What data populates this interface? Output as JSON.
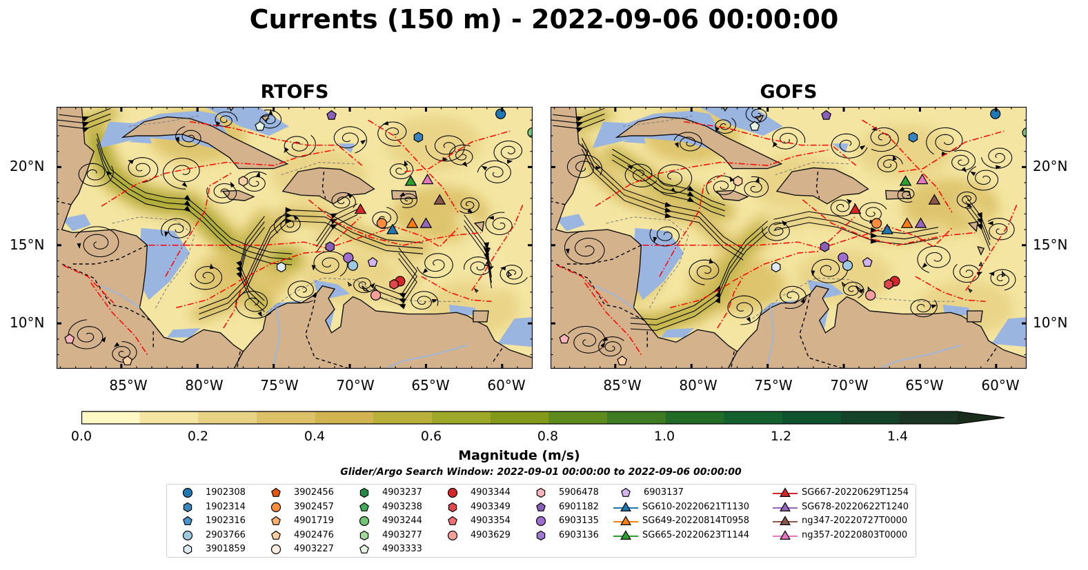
{
  "title": "Currents (150 m) - 2022-09-06 00:00:00",
  "panels": [
    {
      "title": "RTOFS",
      "variant": 0
    },
    {
      "title": "GOFS",
      "variant": 1
    }
  ],
  "axes": {
    "lon_labels": [
      "85°W",
      "80°W",
      "75°W",
      "70°W",
      "65°W",
      "60°W"
    ],
    "lat_labels": [
      "20°N",
      "15°N",
      "10°N"
    ]
  },
  "colors": {
    "land": "#d4b38c",
    "shallow_water": "#9ab5e0",
    "colormap": [
      "#fff7c4",
      "#f4e6a2",
      "#e8d385",
      "#dcc168",
      "#cfb450",
      "#b9b13b",
      "#9fa929",
      "#82991a",
      "#5f8a1e",
      "#3f7b22",
      "#236c27",
      "#14602f",
      "#0e5230",
      "#15432a",
      "#1b3524",
      "#1a2c1c"
    ],
    "eez_lines": "#ff0000"
  },
  "colorbar": {
    "label": "Magnitude (m/s)",
    "ticks": [
      "0.0",
      "0.2",
      "0.4",
      "0.6",
      "0.8",
      "1.0",
      "1.2",
      "1.4"
    ],
    "min": 0.0,
    "max": 1.5,
    "step": 0.1,
    "extend": "max"
  },
  "search_window": "Glider/Argo Search Window: 2022-09-01 00:00:00 to 2022-09-06 00:00:00",
  "legend": {
    "columns": [
      [
        {
          "label": "1902308",
          "marker": "circle",
          "color": "#1f77b4"
        },
        {
          "label": "1902314",
          "marker": "hexagon",
          "color": "#3a84bd"
        },
        {
          "label": "1902316",
          "marker": "pentagon",
          "color": "#4a97d0"
        },
        {
          "label": "2903766",
          "marker": "circle",
          "color": "#9ecae1"
        },
        {
          "label": "3901859",
          "marker": "hexagon",
          "color": "#deebf7"
        }
      ],
      [
        {
          "label": "3902456",
          "marker": "pentagon",
          "color": "#e6550d"
        },
        {
          "label": "3902457",
          "marker": "circle",
          "color": "#fd8d3c"
        },
        {
          "label": "4901719",
          "marker": "pentagon",
          "color": "#fdae6b"
        },
        {
          "label": "4902476",
          "marker": "pentagon",
          "color": "#fdd0a2"
        },
        {
          "label": "4903227",
          "marker": "circle",
          "color": "#feedde"
        }
      ],
      [
        {
          "label": "4903237",
          "marker": "hexagon",
          "color": "#238b45"
        },
        {
          "label": "4903238",
          "marker": "pentagon",
          "color": "#41ab5d"
        },
        {
          "label": "4903244",
          "marker": "circle",
          "color": "#74c476"
        },
        {
          "label": "4903277",
          "marker": "hexagon",
          "color": "#a1d99b"
        },
        {
          "label": "4903333",
          "marker": "pentagon",
          "color": "#e5f5e0"
        }
      ],
      [
        {
          "label": "4903344",
          "marker": "circle",
          "color": "#d62728"
        },
        {
          "label": "4903349",
          "marker": "hexagon",
          "color": "#e0474c"
        },
        {
          "label": "4903354",
          "marker": "pentagon",
          "color": "#ef6f73"
        },
        {
          "label": "4903629",
          "marker": "circle",
          "color": "#f5a09a"
        }
      ],
      [
        {
          "label": "5906478",
          "marker": "hexagon",
          "color": "#fbb4b9"
        },
        {
          "label": "6901182",
          "marker": "pentagon",
          "color": "#8a5fb8"
        },
        {
          "label": "6903135",
          "marker": "circle",
          "color": "#9e6fcf"
        },
        {
          "label": "6903136",
          "marker": "hexagon",
          "color": "#a07ad6"
        }
      ],
      [
        {
          "label": "6903137",
          "marker": "pentagon",
          "color": "#d2b4ee",
          "glider": false
        },
        {
          "label": "SG610-20220621T1130",
          "marker": "triangle",
          "color": "#1f77b4",
          "glider": true
        },
        {
          "label": "SG649-20220814T0958",
          "marker": "triangle",
          "color": "#ff7f0e",
          "glider": true
        },
        {
          "label": "SG665-20220623T1144",
          "marker": "triangle",
          "color": "#2ca02c",
          "glider": true
        }
      ],
      [
        {
          "label": "SG667-20220629T1254",
          "marker": "triangle",
          "color": "#d62728",
          "glider": true
        },
        {
          "label": "SG678-20220622T1240",
          "marker": "triangle",
          "color": "#9467bd",
          "glider": true
        },
        {
          "label": "ng347-20220727T0000",
          "marker": "triangle",
          "color": "#8c564b",
          "glider": true
        },
        {
          "label": "ng357-20220803T0000",
          "marker": "triangle",
          "color": "#e377c2",
          "glider": true
        }
      ]
    ]
  },
  "map_markers": [
    {
      "lon": -60.1,
      "lat": 23.4,
      "marker": "circle",
      "color": "#1f77b4"
    },
    {
      "lon": -58.0,
      "lat": 22.2,
      "marker": "circle",
      "color": "#74c476"
    },
    {
      "lon": -65.5,
      "lat": 21.9,
      "marker": "hexagon",
      "color": "#3a84bd"
    },
    {
      "lon": -71.2,
      "lat": 23.3,
      "marker": "pentagon",
      "color": "#8a5fb8"
    },
    {
      "lon": -75.9,
      "lat": 22.6,
      "marker": "pentagon",
      "color": "#e5f5e0"
    },
    {
      "lon": -77.0,
      "lat": 19.1,
      "marker": "hexagon",
      "color": "#fdd0a2"
    },
    {
      "lon": -66.0,
      "lat": 19.1,
      "marker": "triangle",
      "color": "#2ca02c"
    },
    {
      "lon": -64.9,
      "lat": 19.2,
      "marker": "triangle",
      "color": "#e377c2"
    },
    {
      "lon": -64.1,
      "lat": 17.9,
      "marker": "triangle",
      "color": "#8c564b"
    },
    {
      "lon": -69.3,
      "lat": 17.3,
      "marker": "triangle",
      "color": "#d62728"
    },
    {
      "lon": -67.9,
      "lat": 16.4,
      "marker": "circle",
      "color": "#fd8d3c"
    },
    {
      "lon": -67.2,
      "lat": 16.0,
      "marker": "triangle",
      "color": "#1f77b4"
    },
    {
      "lon": -65.9,
      "lat": 16.4,
      "marker": "triangle",
      "color": "#ff7f0e"
    },
    {
      "lon": -65.0,
      "lat": 16.4,
      "marker": "triangle",
      "color": "#9467bd"
    },
    {
      "lon": -71.3,
      "lat": 14.9,
      "marker": "hexagon",
      "color": "#8a5fb8"
    },
    {
      "lon": -70.1,
      "lat": 14.2,
      "marker": "circle",
      "color": "#9e6fcf"
    },
    {
      "lon": -69.8,
      "lat": 13.7,
      "marker": "circle",
      "color": "#9ecae1"
    },
    {
      "lon": -68.5,
      "lat": 13.9,
      "marker": "pentagon",
      "color": "#d2b4ee"
    },
    {
      "lon": -74.5,
      "lat": 13.6,
      "marker": "hexagon",
      "color": "#deebf7"
    },
    {
      "lon": -66.7,
      "lat": 12.7,
      "marker": "circle",
      "color": "#d62728"
    },
    {
      "lon": -67.1,
      "lat": 12.5,
      "marker": "hexagon",
      "color": "#e0474c"
    },
    {
      "lon": -68.3,
      "lat": 11.8,
      "marker": "circle",
      "color": "#f5a09a"
    },
    {
      "lon": -88.4,
      "lat": 9.0,
      "marker": "pentagon",
      "color": "#fbb4b9"
    },
    {
      "lon": -84.6,
      "lat": 7.6,
      "marker": "pentagon",
      "color": "#fdd0a2"
    }
  ]
}
